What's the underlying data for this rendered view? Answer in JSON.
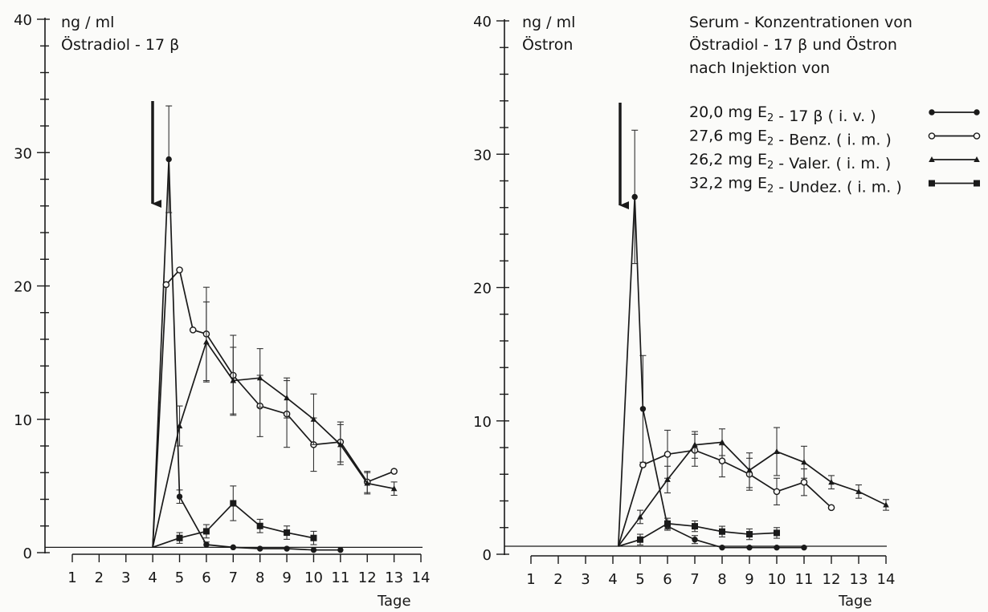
{
  "chart_data": [
    {
      "type": "line",
      "unit_label": "ng / ml",
      "title": "Östradiol - 17 β",
      "xlabel": "Tage",
      "xlim": [
        1,
        14
      ],
      "ylim": [
        0,
        40
      ],
      "x_ticks": [
        1,
        2,
        3,
        4,
        5,
        6,
        7,
        8,
        9,
        10,
        11,
        12,
        13,
        14
      ],
      "y_ticks": [
        0,
        10,
        20,
        30,
        40
      ],
      "baseline": 0.4,
      "injection_day": 4,
      "series": [
        {
          "key": "iv",
          "marker": "filled-dot",
          "x": [
            4,
            4.6,
            5,
            6,
            7,
            8,
            9,
            10,
            11
          ],
          "y": [
            0.4,
            29.5,
            4.2,
            0.6,
            0.4,
            0.3,
            0.3,
            0.2,
            0.2
          ],
          "err": [
            0,
            4,
            0.5,
            0.2,
            0,
            0,
            0,
            0,
            0
          ]
        },
        {
          "key": "benz",
          "marker": "open-circle",
          "x": [
            4,
            4.5,
            5,
            5.5,
            6,
            7,
            8,
            9,
            10,
            11,
            12,
            13
          ],
          "y": [
            0.4,
            20.1,
            21.2,
            16.7,
            16.4,
            13.3,
            11.0,
            10.4,
            8.1,
            8.3,
            5.3,
            6.1
          ],
          "err": [
            0,
            0,
            0,
            0,
            3.5,
            3,
            2.3,
            2.5,
            2,
            1.5,
            0.8,
            0
          ]
        },
        {
          "key": "valer",
          "marker": "triangle",
          "x": [
            4,
            5,
            6,
            7,
            8,
            9,
            10,
            11,
            12,
            13
          ],
          "y": [
            0.4,
            9.5,
            15.8,
            12.9,
            13.1,
            11.6,
            10.0,
            8.1,
            5.2,
            4.8
          ],
          "err": [
            0,
            1.5,
            3,
            2.5,
            2.2,
            1.5,
            1.9,
            1.5,
            0.8,
            0.5
          ]
        },
        {
          "key": "undez",
          "marker": "filled-square",
          "x": [
            4,
            5,
            6,
            7,
            8,
            9,
            10
          ],
          "y": [
            0.4,
            1.1,
            1.6,
            3.7,
            2.0,
            1.5,
            1.1
          ],
          "err": [
            0,
            0.4,
            0.5,
            1.3,
            0.5,
            0.5,
            0.5
          ]
        }
      ]
    },
    {
      "type": "line",
      "unit_label": "ng / ml",
      "title": "Östron",
      "xlabel": "Tage",
      "xlim": [
        1,
        14
      ],
      "ylim": [
        0,
        40
      ],
      "x_ticks": [
        1,
        2,
        3,
        4,
        5,
        6,
        7,
        8,
        9,
        10,
        11,
        12,
        13,
        14
      ],
      "y_ticks": [
        0,
        10,
        20,
        30,
        40
      ],
      "baseline": 0.6,
      "injection_day": 4,
      "series": [
        {
          "key": "iv",
          "marker": "filled-dot",
          "x": [
            4.2,
            4.8,
            5.1,
            6,
            7,
            8,
            9,
            10,
            11
          ],
          "y": [
            0.6,
            26.8,
            10.9,
            2.1,
            1.1,
            0.5,
            0.5,
            0.5,
            0.5
          ],
          "err": [
            0,
            5,
            4,
            0.3,
            0.3,
            0,
            0,
            0,
            0
          ]
        },
        {
          "key": "benz",
          "marker": "open-circle",
          "x": [
            4.2,
            5.1,
            6,
            7,
            8,
            9,
            10,
            11,
            12
          ],
          "y": [
            0.6,
            6.7,
            7.5,
            7.8,
            7.0,
            6.0,
            4.7,
            5.4,
            3.5
          ],
          "err": [
            0,
            0,
            1.8,
            1.2,
            1.2,
            1.2,
            1,
            1,
            0
          ]
        },
        {
          "key": "valer",
          "marker": "triangle",
          "x": [
            4.2,
            5,
            6,
            7,
            8,
            9,
            10,
            11,
            12,
            13,
            14
          ],
          "y": [
            0.6,
            2.8,
            5.6,
            8.2,
            8.4,
            6.3,
            7.7,
            6.9,
            5.4,
            4.7,
            3.7
          ],
          "err": [
            0,
            0.5,
            1,
            1,
            1,
            1.3,
            1.8,
            1.2,
            0.5,
            0.5,
            0.4
          ]
        },
        {
          "key": "undez",
          "marker": "filled-square",
          "x": [
            4.2,
            5,
            6,
            7,
            8,
            9,
            10
          ],
          "y": [
            0.6,
            1.1,
            2.3,
            2.1,
            1.7,
            1.5,
            1.6
          ],
          "err": [
            0,
            0.4,
            0.4,
            0.4,
            0.4,
            0.4,
            0.4
          ]
        }
      ]
    }
  ],
  "legend": {
    "title_lines": [
      "Serum - Konzentrationen von",
      "Östradiol - 17 β und Östron",
      "nach Injektion von"
    ],
    "entries": [
      {
        "key": "iv",
        "dose": "20,0 mg",
        "drug": "E",
        "sub": "2",
        "rest": " - 17 β ( i. v. )",
        "marker": "filled-dot"
      },
      {
        "key": "benz",
        "dose": "27,6 mg",
        "drug": "E",
        "sub": "2",
        "rest": " - Benz. ( i. m. )",
        "marker": "open-circle"
      },
      {
        "key": "valer",
        "dose": "26,2 mg",
        "drug": "E",
        "sub": "2",
        "rest": " - Valer. ( i. m. )",
        "marker": "triangle"
      },
      {
        "key": "undez",
        "dose": "32,2 mg",
        "drug": "E",
        "sub": "2",
        "rest": " - Undez. ( i. m. )",
        "marker": "filled-square"
      }
    ]
  },
  "colors": {
    "ink": "#1a1a1a",
    "paper": "#fbfbf9"
  }
}
